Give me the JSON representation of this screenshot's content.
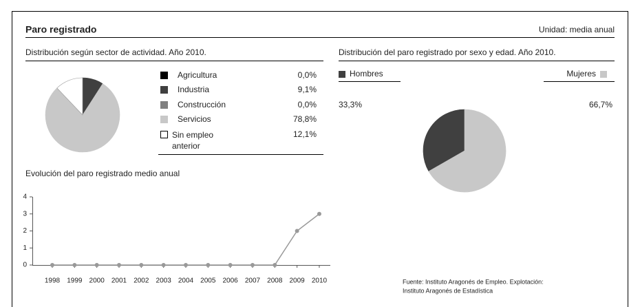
{
  "header": {
    "title": "Paro registrado",
    "unit": "Unidad: media anual"
  },
  "chart_data": [
    {
      "type": "pie",
      "title": "Distribución según sector de actividad. Año 2010.",
      "categories": [
        "Agricultura",
        "Industria",
        "Construcción",
        "Servicios",
        "Sin empleo anterior"
      ],
      "values": [
        0.0,
        9.1,
        0.0,
        78.8,
        12.1
      ],
      "value_labels": [
        "0,0%",
        "9,1%",
        "0,0%",
        "78,8%",
        "12,1%"
      ],
      "colors": [
        "#000000",
        "#404040",
        "#808080",
        "#c8c8c8",
        "#ffffff"
      ]
    },
    {
      "type": "pie",
      "title": "Distribución del paro registrado por sexo y edad. Año 2010.",
      "categories": [
        "Hombres",
        "Mujeres"
      ],
      "values": [
        33.3,
        66.7
      ],
      "value_labels": [
        "33,3%",
        "66,7%"
      ],
      "colors": [
        "#404040",
        "#c8c8c8"
      ]
    },
    {
      "type": "line",
      "title": "Evolución del paro registrado medio anual",
      "categories": [
        "1998",
        "1999",
        "2000",
        "2001",
        "2002",
        "2003",
        "2004",
        "2005",
        "2006",
        "2007",
        "2008",
        "2009",
        "2010"
      ],
      "values": [
        0,
        0,
        0,
        0,
        0,
        0,
        0,
        0,
        0,
        0,
        0,
        2,
        3
      ],
      "color": "#999999",
      "ylim": [
        0,
        4
      ],
      "yticks": [
        0,
        1,
        2,
        3,
        4
      ]
    }
  ],
  "source": [
    "Fuente: Instituto Aragonés de Empleo. Explotación:",
    "Instituto Aragonés de Estadística"
  ]
}
